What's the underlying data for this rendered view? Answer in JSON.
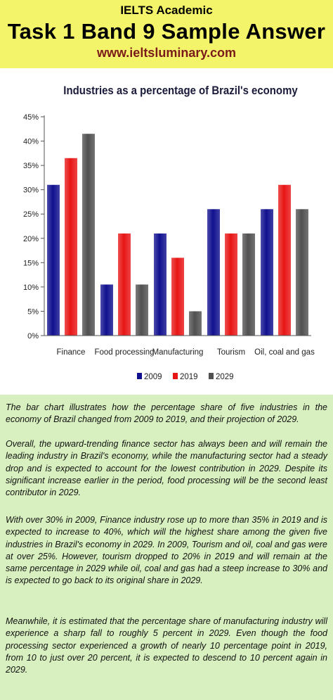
{
  "header": {
    "line1": "IELTS Academic",
    "line2": "Task 1 Band 9 Sample Answer",
    "url": "www.ieltsluminary.com"
  },
  "colors": {
    "header_bg": "#f4f46a",
    "url": "#7a1a1a",
    "text_bg": "#d8f0bf",
    "series_2009": "#10108f",
    "series_2019": "#e81515",
    "series_2029": "#505050"
  },
  "chart_data": {
    "type": "bar",
    "title": "Industries as a percentage of Brazil's economy",
    "xlabel": "",
    "ylabel": "",
    "categories": [
      "Finance",
      "Food processing",
      "Manufacturing",
      "Tourism",
      "Oil, coal and gas"
    ],
    "series": [
      {
        "name": "2009",
        "values": [
          31,
          10.5,
          21,
          26,
          26
        ]
      },
      {
        "name": "2019",
        "values": [
          36.5,
          21,
          16,
          21,
          31
        ]
      },
      {
        "name": "2029",
        "values": [
          41.5,
          10.5,
          5,
          21,
          26
        ]
      }
    ],
    "ylim": [
      0,
      45
    ],
    "yticks": [
      "0%",
      "5%",
      "10%",
      "15%",
      "20%",
      "25%",
      "30%",
      "35%",
      "40%",
      "45%"
    ],
    "legend_position": "bottom",
    "grid": false
  },
  "essay": {
    "p1": "The bar chart illustrates how the percentage share of five industries in the economy of Brazil changed from 2009 to 2019, and their projection of 2029.",
    "p2": "Overall, the upward-trending finance sector has always been and will remain the leading industry in Brazil's economy, while the manufacturing sector had a steady drop and is expected to account for the lowest contribution in 2029. Despite its significant increase earlier in the period, food processing will be the second least contributor in 2029.",
    "p3": "With over 30% in 2009, Finance industry rose up to more than 35% in 2019 and is expected to increase to 40%, which will the highest share among the given five industries in Brazil's economy in 2029. In 2009, Tourism and oil, coal and gas were at over 25%. However, tourism dropped to 20% in 2019 and will remain at the same percentage in 2029 while oil, coal and gas had a steep increase to 30% and is expected to go back to its original share in 2029.",
    "p4": "Meanwhile, it is estimated that the percentage share of manufacturing industry will experience a sharp fall to roughly 5 percent in 2029. Even though the food processing sector experienced a growth of nearly 10 percentage point in 2019, from 10 to just over 20 percent, it is expected to descend to 10 percent again in 2029."
  }
}
